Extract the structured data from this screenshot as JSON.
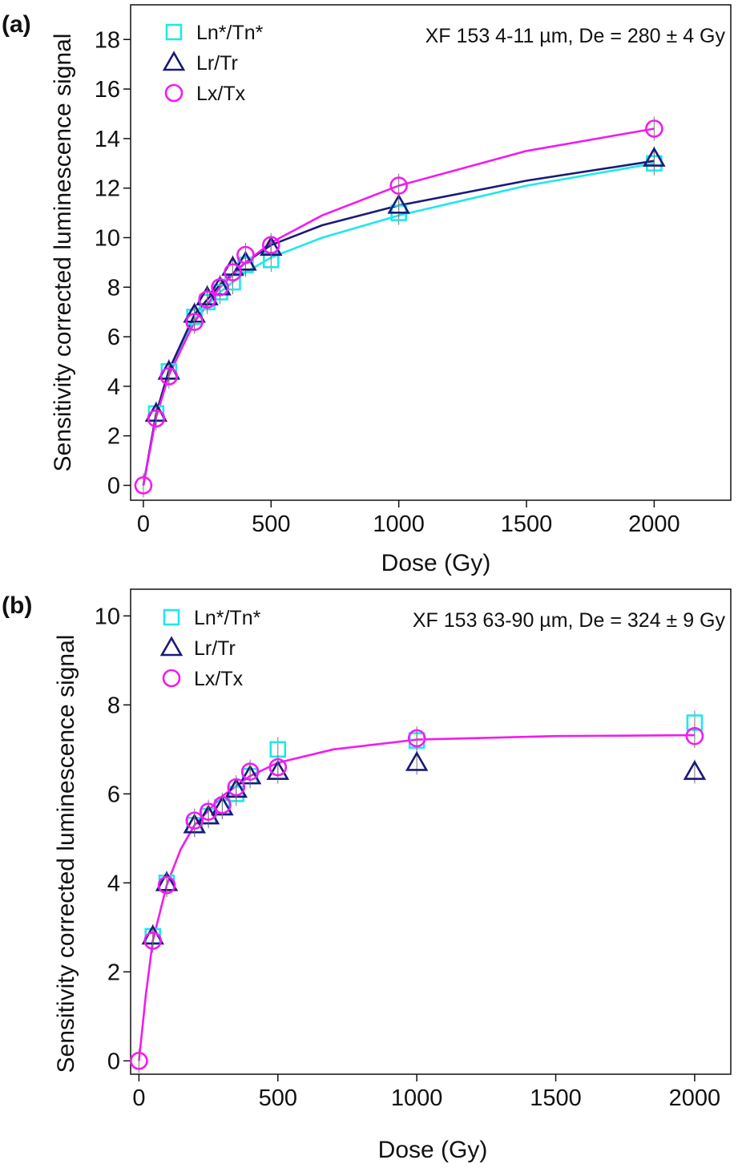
{
  "colors": {
    "ln_tn": "#1ee8ea",
    "lr_tr": "#1a1a78",
    "lx_tx": "#f21bf0",
    "axis": "#111111"
  },
  "chart_data": [
    {
      "type": "scatter",
      "panel_label": "(a)",
      "annotation": "XF 153 4-11 µm, De = 280 ± 4 Gy",
      "xlabel": "Dose (Gy)",
      "ylabel": "Sensitivity corrected luminescence signal",
      "xlim": [
        -50,
        2300
      ],
      "ylim": [
        -0.6,
        19.4
      ],
      "xticks": [
        0,
        500,
        1000,
        1500,
        2000
      ],
      "xtick_labels": [
        "0",
        "500",
        "1000",
        "1500",
        "2000"
      ],
      "yticks": [
        0,
        2,
        4,
        6,
        8,
        10,
        12,
        14,
        16,
        18
      ],
      "ytick_labels": [
        "0",
        "2",
        "4",
        "6",
        "8",
        "10",
        "12",
        "14",
        "16",
        "18"
      ],
      "legend_position": "top-left",
      "series": [
        {
          "name": "Ln*/Tn*",
          "marker": "square",
          "color_key": "ln_tn",
          "points": [
            [
              50,
              2.9
            ],
            [
              100,
              4.6
            ],
            [
              200,
              6.8
            ],
            [
              250,
              7.4
            ],
            [
              300,
              7.8
            ],
            [
              350,
              8.2
            ],
            [
              400,
              8.9
            ],
            [
              500,
              9.1
            ],
            [
              1000,
              11.0
            ],
            [
              2000,
              13.0
            ]
          ],
          "fit": [
            [
              0,
              0
            ],
            [
              50,
              2.9
            ],
            [
              100,
              4.55
            ],
            [
              200,
              6.7
            ],
            [
              300,
              7.8
            ],
            [
              400,
              8.6
            ],
            [
              500,
              9.2
            ],
            [
              700,
              10.0
            ],
            [
              1000,
              10.9
            ],
            [
              1500,
              12.1
            ],
            [
              2000,
              13.0
            ]
          ]
        },
        {
          "name": "Lr/Tr",
          "marker": "triangle",
          "color_key": "lr_tr",
          "points": [
            [
              50,
              2.9
            ],
            [
              100,
              4.6
            ],
            [
              200,
              6.9
            ],
            [
              250,
              7.6
            ],
            [
              300,
              8.0
            ],
            [
              350,
              8.8
            ],
            [
              400,
              9.0
            ],
            [
              500,
              9.6
            ],
            [
              1000,
              11.3
            ],
            [
              2000,
              13.2
            ]
          ],
          "fit": [
            [
              0,
              0
            ],
            [
              50,
              2.9
            ],
            [
              100,
              4.65
            ],
            [
              200,
              6.9
            ],
            [
              300,
              8.1
            ],
            [
              400,
              9.0
            ],
            [
              500,
              9.7
            ],
            [
              700,
              10.5
            ],
            [
              1000,
              11.3
            ],
            [
              1500,
              12.3
            ],
            [
              2000,
              13.1
            ]
          ]
        },
        {
          "name": "Lx/Tx",
          "marker": "circle",
          "color_key": "lx_tx",
          "points": [
            [
              0,
              0.0
            ],
            [
              50,
              2.7
            ],
            [
              100,
              4.4
            ],
            [
              200,
              6.6
            ],
            [
              250,
              7.5
            ],
            [
              300,
              8.0
            ],
            [
              350,
              8.6
            ],
            [
              400,
              9.3
            ],
            [
              500,
              9.7
            ],
            [
              1000,
              12.1
            ],
            [
              2000,
              14.4
            ]
          ],
          "fit": [
            [
              0,
              0
            ],
            [
              50,
              2.75
            ],
            [
              100,
              4.45
            ],
            [
              200,
              6.6
            ],
            [
              300,
              8.0
            ],
            [
              400,
              9.0
            ],
            [
              500,
              9.8
            ],
            [
              700,
              10.9
            ],
            [
              1000,
              12.1
            ],
            [
              1500,
              13.5
            ],
            [
              2000,
              14.4
            ]
          ]
        }
      ]
    },
    {
      "type": "scatter",
      "panel_label": "(b)",
      "annotation": "XF 153 63-90 µm, De = 324 ± 9 Gy",
      "xlabel": "Dose (Gy)",
      "ylabel": "Sensitivity corrected luminescence signal",
      "xlim": [
        -30,
        2130
      ],
      "ylim": [
        -0.3,
        10.6
      ],
      "xticks": [
        0,
        500,
        1000,
        1500,
        2000
      ],
      "xtick_labels": [
        "0",
        "500",
        "1000",
        "1500",
        "2000"
      ],
      "yticks": [
        0,
        2,
        4,
        6,
        8,
        10
      ],
      "ytick_labels": [
        "0",
        "2",
        "4",
        "6",
        "8",
        "10"
      ],
      "legend_position": "top-left",
      "series": [
        {
          "name": "Ln*/Tn*",
          "marker": "square",
          "color_key": "ln_tn",
          "points": [
            [
              50,
              2.8
            ],
            [
              100,
              4.0
            ],
            [
              200,
              5.3
            ],
            [
              250,
              5.5
            ],
            [
              300,
              5.7
            ],
            [
              350,
              6.0
            ],
            [
              400,
              6.4
            ],
            [
              500,
              7.0
            ],
            [
              1000,
              7.2
            ],
            [
              2000,
              7.6
            ]
          ]
        },
        {
          "name": "Lr/Tr",
          "marker": "triangle",
          "color_key": "lr_tr",
          "points": [
            [
              50,
              2.8
            ],
            [
              100,
              4.0
            ],
            [
              200,
              5.3
            ],
            [
              250,
              5.5
            ],
            [
              300,
              5.7
            ],
            [
              350,
              6.1
            ],
            [
              400,
              6.4
            ],
            [
              500,
              6.5
            ],
            [
              1000,
              6.7
            ],
            [
              2000,
              6.5
            ]
          ]
        },
        {
          "name": "Lx/Tx",
          "marker": "circle",
          "color_key": "lx_tx",
          "points": [
            [
              0,
              0.0
            ],
            [
              50,
              2.7
            ],
            [
              100,
              3.95
            ],
            [
              200,
              5.4
            ],
            [
              250,
              5.6
            ],
            [
              300,
              5.75
            ],
            [
              350,
              6.15
            ],
            [
              400,
              6.5
            ],
            [
              500,
              6.6
            ],
            [
              1000,
              7.25
            ],
            [
              2000,
              7.3
            ]
          ],
          "fit": [
            [
              0,
              0
            ],
            [
              25,
              1.5
            ],
            [
              50,
              2.7
            ],
            [
              100,
              3.95
            ],
            [
              150,
              4.75
            ],
            [
              200,
              5.3
            ],
            [
              300,
              5.95
            ],
            [
              400,
              6.4
            ],
            [
              500,
              6.7
            ],
            [
              700,
              7.0
            ],
            [
              1000,
              7.22
            ],
            [
              1500,
              7.3
            ],
            [
              2000,
              7.32
            ]
          ]
        }
      ]
    }
  ]
}
